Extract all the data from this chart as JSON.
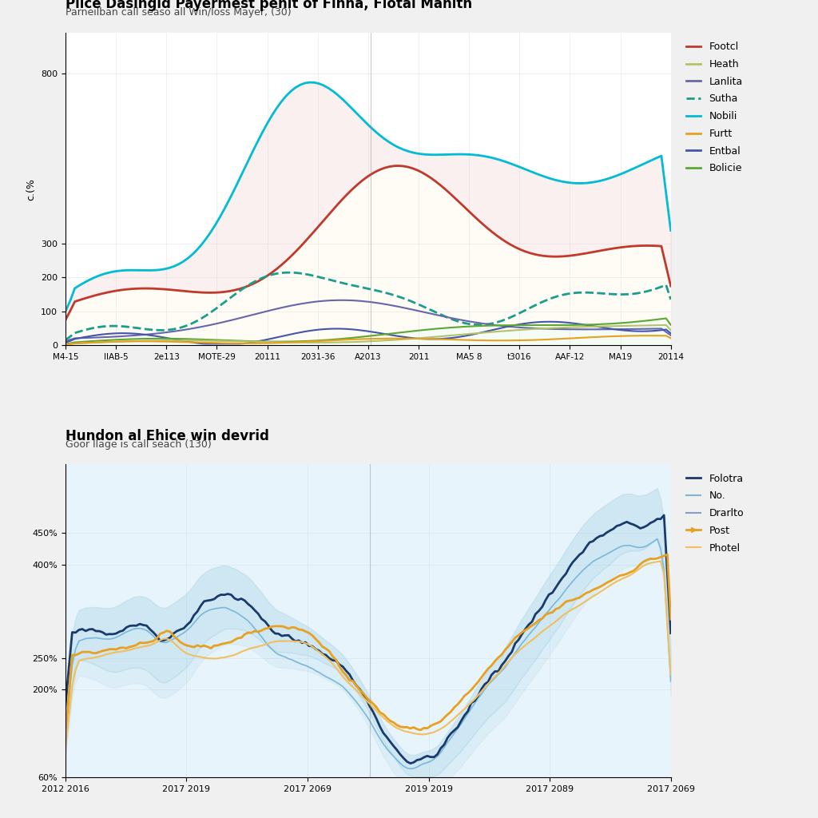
{
  "top_title": "Plice Dasingid Payermest penit of Finna, Flotal Mahith",
  "top_subtitle": "Parneilban call seaso all Win/loss Mayer, (30)",
  "top_ylabel": "c.(%",
  "top_xticks": [
    "M4-15",
    "IIAB-5",
    "2e113",
    "MOTE-29",
    "20111",
    "2031-36",
    "A2013",
    "2011",
    "MA5 8",
    "t3016",
    "AAF-12",
    "MA19",
    "20114"
  ],
  "bottom_title": "Hundon al Ehice win devrid",
  "bottom_subtitle": "Goor llage is call seach (130)",
  "bottom_xticks": [
    "2012 2016",
    "2017 2019",
    "2017 2069",
    "2019 2019",
    "2017 2089",
    "2017 2069"
  ],
  "top_series": {
    "Footcl": {
      "color": "#c0392b",
      "lw": 2.0
    },
    "Heath": {
      "color": "#b5c26a",
      "lw": 1.5
    },
    "Lanlita": {
      "color": "#6666aa",
      "lw": 1.5
    },
    "Sutha": {
      "color": "#1a9e8c",
      "lw": 2.0
    },
    "Nobili": {
      "color": "#00bcd4",
      "lw": 2.0
    },
    "Furtt": {
      "color": "#e8a020",
      "lw": 1.5
    },
    "Entbal": {
      "color": "#4455aa",
      "lw": 1.5
    },
    "Bolicie": {
      "color": "#5ca832",
      "lw": 1.5
    }
  },
  "bottom_series": {
    "Folotra": {
      "color": "#1a3a6b",
      "lw": 2.0
    },
    "No.": {
      "color": "#7ab8d9",
      "lw": 1.2
    },
    "Drarlto": {
      "color": "#8899cc",
      "lw": 1.2
    },
    "Post": {
      "color": "#e8a020",
      "lw": 2.0
    },
    "Photel": {
      "color": "#f0c060",
      "lw": 1.5
    }
  },
  "top_bg": "#ffffff",
  "bottom_bg": "#e8f4fb"
}
